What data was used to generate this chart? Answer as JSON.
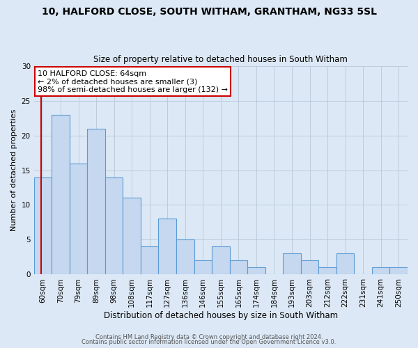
{
  "title": "10, HALFORD CLOSE, SOUTH WITHAM, GRANTHAM, NG33 5SL",
  "subtitle": "Size of property relative to detached houses in South Witham",
  "xlabel": "Distribution of detached houses by size in South Witham",
  "ylabel": "Number of detached properties",
  "bar_labels": [
    "60sqm",
    "70sqm",
    "79sqm",
    "89sqm",
    "98sqm",
    "108sqm",
    "117sqm",
    "127sqm",
    "136sqm",
    "146sqm",
    "155sqm",
    "165sqm",
    "174sqm",
    "184sqm",
    "193sqm",
    "203sqm",
    "212sqm",
    "222sqm",
    "231sqm",
    "241sqm",
    "250sqm"
  ],
  "bar_values": [
    14,
    23,
    16,
    21,
    14,
    11,
    4,
    8,
    5,
    2,
    4,
    2,
    1,
    0,
    3,
    2,
    1,
    3,
    0,
    1,
    1
  ],
  "bar_color": "#c5d8f0",
  "bar_edgecolor": "#5b9bd5",
  "ylim": [
    0,
    30
  ],
  "yticks": [
    0,
    5,
    10,
    15,
    20,
    25,
    30
  ],
  "annotation_title": "10 HALFORD CLOSE: 64sqm",
  "annotation_line1": "← 2% of detached houses are smaller (3)",
  "annotation_line2": "98% of semi-detached houses are larger (132) →",
  "annotation_box_facecolor": "#ffffff",
  "annotation_box_edgecolor": "#cc0000",
  "redline_color": "#cc0000",
  "background_color": "#dce8f5",
  "grid_color": "#b8c8d8",
  "footer1": "Contains HM Land Registry data © Crown copyright and database right 2024.",
  "footer2": "Contains public sector information licensed under the Open Government Licence v3.0.",
  "title_fontsize": 10,
  "subtitle_fontsize": 8.5,
  "xlabel_fontsize": 8.5,
  "ylabel_fontsize": 8,
  "tick_fontsize": 7.5,
  "annotation_fontsize": 8,
  "footer_fontsize": 6
}
